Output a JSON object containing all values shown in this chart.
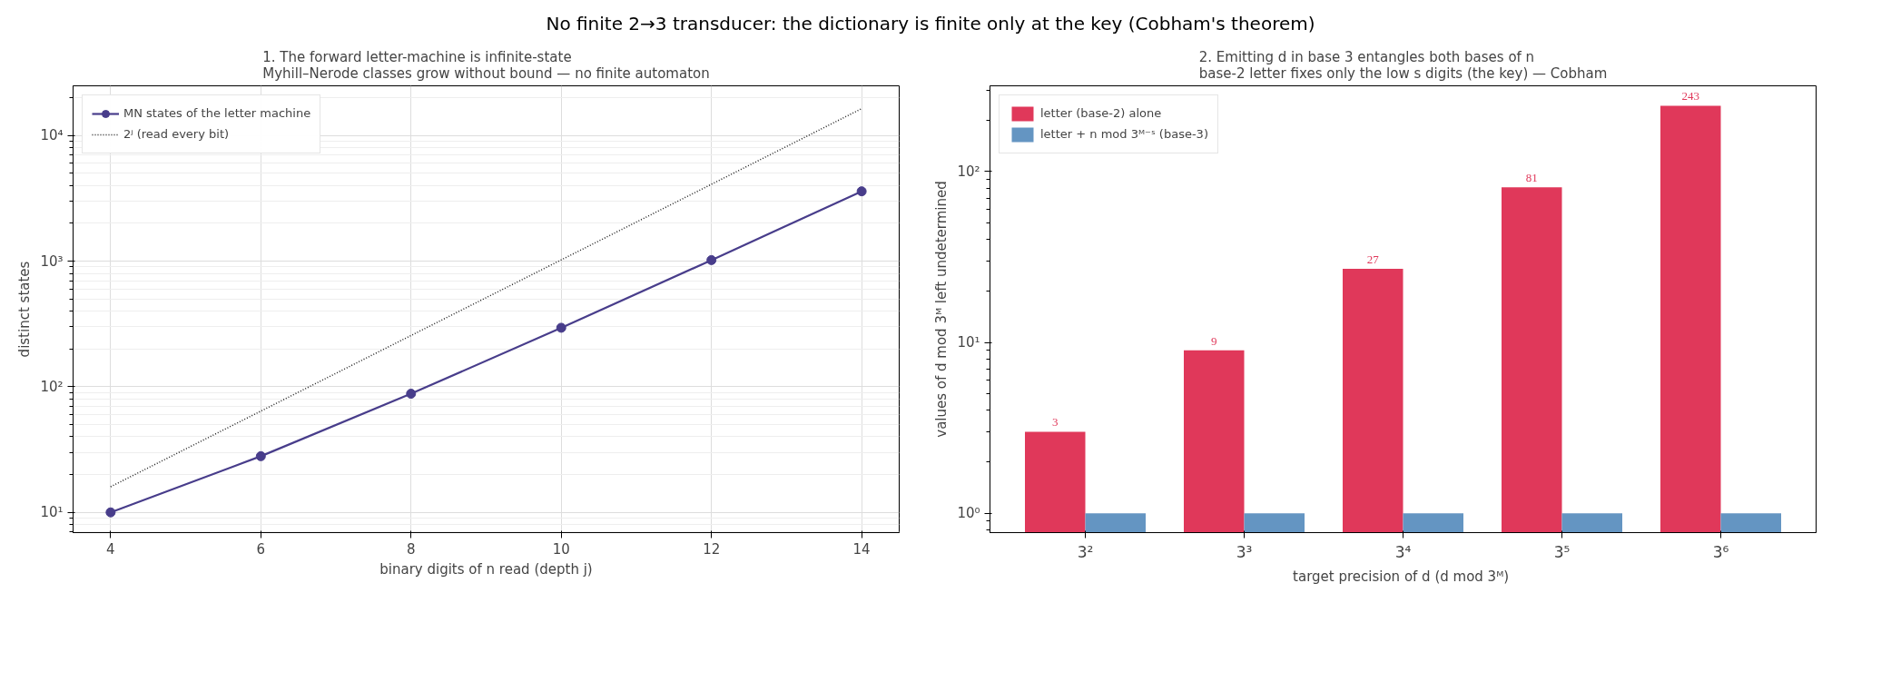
{
  "chart_data": [
    {
      "type": "line",
      "title": "1. The forward letter-machine is infinite-state\nMyhill–Nerode classes grow without bound — no finite automaton",
      "annotations": [
        "No finite 2→3 transducer: the dictionary is finite only at the key (Cobham's theorem)"
      ],
      "xlabel": "binary digits of n read (depth j)",
      "ylabel": "distinct states",
      "x": [
        4,
        6,
        8,
        10,
        12,
        14
      ],
      "series": [
        {
          "name": "MN states of the letter machine",
          "color": "#483d8b",
          "values": [
            10,
            28,
            88,
            295,
            1020,
            3600
          ],
          "marker": "circle",
          "line_style": "solid"
        },
        {
          "name": "2ʲ (read every bit)",
          "color": "#222222",
          "values": [
            16,
            64,
            256,
            1024,
            4096,
            16384
          ],
          "marker": "none",
          "line_style": "dotted"
        }
      ],
      "log": "y",
      "xlim": [
        3.5,
        14.5
      ],
      "xticks": [
        4,
        6,
        8,
        10,
        12,
        14
      ],
      "ylim": [
        6.9,
        24900
      ],
      "yticks": [
        {
          "value": 10,
          "label": "10¹"
        },
        {
          "value": 100,
          "label": "10²"
        },
        {
          "value": 1000,
          "label": "10³"
        },
        {
          "value": 10000,
          "label": "10⁴"
        }
      ],
      "grid": true,
      "legend": "top left"
    },
    {
      "type": "bar",
      "title": "2. Emitting d in base 3 entangles both bases of n\nbase-2 letter fixes only the low s digits (the key) — Cobham",
      "xlabel": "target precision of d  (d mod 3ᴹ)",
      "ylabel": "values of d mod 3ᴹ left undetermined",
      "categories": [
        "3²",
        "3³",
        "3⁴",
        "3⁵",
        "3⁶"
      ],
      "series": [
        {
          "name": "letter (base-2) alone",
          "color": "#e0385a",
          "values": [
            3,
            9,
            27,
            81,
            243
          ],
          "value_labels": [
            "3",
            "9",
            "27",
            "81",
            "243"
          ]
        },
        {
          "name": "letter + n mod 3ᴹ⁻ˢ (base-3)",
          "color": "#6495c2",
          "values": [
            1,
            1,
            1,
            1,
            1
          ]
        }
      ],
      "log": "y",
      "ylim": [
        0.77,
        318
      ],
      "yticks": [
        {
          "value": 1,
          "label": "10⁰"
        },
        {
          "value": 10,
          "label": "10¹"
        },
        {
          "value": 100,
          "label": "10²"
        }
      ],
      "grid": false,
      "legend": "top left"
    }
  ]
}
